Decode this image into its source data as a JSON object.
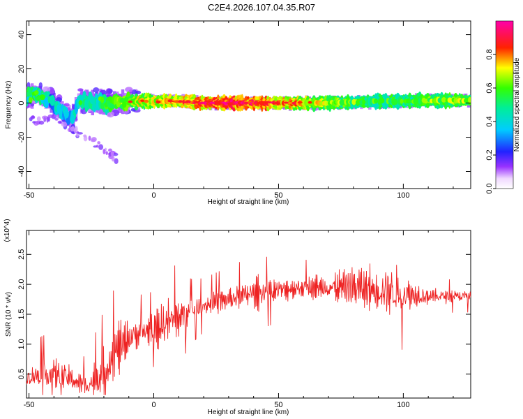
{
  "figure_title": "C2E4.2026.107.04.35.R07",
  "chart_data": [
    {
      "type": "heatmap",
      "title": "",
      "xlabel": "Height of straight line (km)",
      "ylabel": "Frequency (Hz)",
      "xlim": [
        -51,
        127
      ],
      "ylim": [
        -50,
        48
      ],
      "x_ticks": [
        "-50",
        "0",
        "50",
        "100"
      ],
      "x_tick_values": [
        -50,
        0,
        50,
        100
      ],
      "y_ticks": [
        "40",
        "20",
        "0",
        "-20",
        "-40"
      ],
      "y_tick_values": [
        40,
        20,
        0,
        -20,
        -40
      ],
      "colorbar": {
        "label": "Normalized spectral amplitude",
        "ticks": [
          "0.0",
          "0.2",
          "0.4",
          "0.6",
          "0.8"
        ],
        "tick_values": [
          0.0,
          0.2,
          0.4,
          0.6,
          0.8
        ],
        "range": [
          0,
          1
        ],
        "colormap": "rainbow (white-violet-blue-cyan-green-yellow-red-magenta)"
      },
      "ridge": {
        "description": "dominant frequency band vs height",
        "x": [
          -51,
          -48,
          -45,
          -42,
          -39,
          -36,
          -33,
          -30,
          -25,
          -20,
          -15,
          -10,
          0,
          10,
          20,
          30,
          40,
          50,
          60,
          70,
          80,
          90,
          100,
          110,
          120,
          127
        ],
        "freq": [
          3,
          5,
          4,
          2,
          -2,
          -6,
          -10,
          1,
          1,
          0,
          0,
          1,
          1,
          1,
          0,
          0,
          0,
          0,
          0,
          0,
          0.5,
          1,
          1,
          1.5,
          1.5,
          1.5
        ],
        "amplitude": [
          0.45,
          0.5,
          0.4,
          0.35,
          0.35,
          0.3,
          0.3,
          0.4,
          0.45,
          0.5,
          0.6,
          0.65,
          0.7,
          0.75,
          0.85,
          0.9,
          0.85,
          0.8,
          0.7,
          0.6,
          0.55,
          0.5,
          0.5,
          0.55,
          0.6,
          0.6
        ]
      },
      "tail": {
        "description": "weak descending branch",
        "x": [
          -50,
          -45,
          -40,
          -35,
          -30,
          -25,
          -20,
          -15
        ],
        "freq": [
          -8,
          -12,
          -6,
          -14,
          -18,
          -22,
          -27,
          -32
        ]
      }
    },
    {
      "type": "line",
      "title": "",
      "xlabel": "Height of straight line (km)",
      "ylabel": "SNR (10 * v/v)",
      "y_multiplier_label": "(x10^4)",
      "xlim": [
        -51,
        127
      ],
      "ylim": [
        0.1,
        2.9
      ],
      "x_ticks": [
        "-50",
        "0",
        "50",
        "100"
      ],
      "x_tick_values": [
        -50,
        0,
        50,
        100
      ],
      "y_ticks": [
        "0.5",
        "1.0",
        "1.5",
        "2.0",
        "2.5"
      ],
      "y_tick_values": [
        0.5,
        1.0,
        1.5,
        2.0,
        2.5
      ],
      "series": [
        {
          "name": "SNR",
          "color": "#ee2222",
          "envelope_x": [
            -51,
            -45,
            -40,
            -35,
            -30,
            -27,
            -22,
            -18,
            -14,
            -10,
            -5,
            0,
            5,
            10,
            15,
            20,
            30,
            40,
            50,
            60,
            70,
            80,
            90,
            95,
            100,
            110,
            120,
            127
          ],
          "envelope_mean": [
            0.45,
            0.5,
            0.5,
            0.45,
            0.35,
            0.3,
            0.45,
            0.7,
            0.95,
            1.1,
            1.2,
            1.25,
            1.35,
            1.45,
            1.55,
            1.65,
            1.75,
            1.85,
            1.9,
            1.95,
            1.95,
            1.95,
            1.9,
            1.9,
            1.85,
            1.8,
            1.8,
            1.8
          ],
          "envelope_spread": [
            0.25,
            0.35,
            0.4,
            0.35,
            0.3,
            0.25,
            0.5,
            0.6,
            0.6,
            0.4,
            0.35,
            0.35,
            0.6,
            0.45,
            0.3,
            0.25,
            0.3,
            0.35,
            0.3,
            0.25,
            0.3,
            0.6,
            0.5,
            0.75,
            0.5,
            0.2,
            0.15,
            0.15
          ],
          "sample_count": 900
        }
      ]
    }
  ]
}
